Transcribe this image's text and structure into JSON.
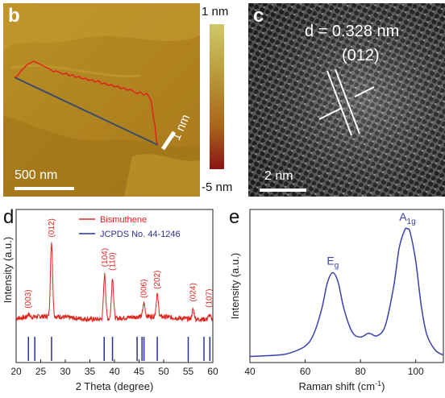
{
  "panel_b": {
    "letter": "b",
    "scale_bar_label": "500 nm",
    "step_label": "1 nm",
    "colorbar_max": "1 nm",
    "colorbar_min": "-5 nm",
    "colors": {
      "bg": "#b58a1e",
      "line": "#e0241d",
      "profile_path": "#3a4c6a"
    }
  },
  "panel_c": {
    "letter": "c",
    "d_spacing": "d = 0.328 nm",
    "plane": "(012)",
    "scale_bar_label": "2 nm"
  },
  "chart_data": [
    {
      "panel": "d",
      "type": "line",
      "xlabel": "2 Theta (degree)",
      "ylabel": "Intensity (a.u.)",
      "xlim": [
        20,
        60
      ],
      "xticks": [
        20,
        25,
        30,
        35,
        40,
        45,
        50,
        55,
        60
      ],
      "legend": [
        {
          "name": "Bismuthene",
          "color": "#e0241d",
          "style": "line"
        },
        {
          "name": "JCPDS No. 44-1246",
          "color": "#2b2f9a",
          "style": "line"
        }
      ],
      "peaks": [
        {
          "x": 22.5,
          "label": "(003)",
          "rel": 0.04
        },
        {
          "x": 27.2,
          "label": "(012)",
          "rel": 1.0
        },
        {
          "x": 38.0,
          "label": "(104)",
          "rel": 0.6
        },
        {
          "x": 39.6,
          "label": "(110)",
          "rel": 0.55
        },
        {
          "x": 46.0,
          "label": "(006)",
          "rel": 0.18
        },
        {
          "x": 48.7,
          "label": "(202)",
          "rel": 0.3
        },
        {
          "x": 56.0,
          "label": "(024)",
          "rel": 0.13
        },
        {
          "x": 59.3,
          "label": "(107)",
          "rel": 0.05
        }
      ],
      "reference_lines": [
        22.5,
        23.8,
        27.2,
        37.9,
        39.6,
        44.6,
        45.6,
        46.0,
        48.7,
        55.0,
        58.2,
        59.4
      ]
    },
    {
      "panel": "e",
      "type": "line",
      "xlabel": "Raman shift (cm",
      "xlabel_sup": "-1",
      "ylabel": "Intensity (a.u.)",
      "xlim": [
        40,
        110
      ],
      "xticks": [
        40,
        60,
        80,
        100
      ],
      "color": "#3b3fb0",
      "x": [
        40,
        50,
        55,
        60,
        63,
        66,
        68,
        70,
        72,
        74,
        77,
        80,
        83,
        86,
        89,
        92,
        94,
        96,
        97,
        98,
        100,
        102,
        104,
        107,
        110
      ],
      "y": [
        0.01,
        0.02,
        0.04,
        0.09,
        0.18,
        0.38,
        0.58,
        0.66,
        0.58,
        0.38,
        0.2,
        0.16,
        0.19,
        0.17,
        0.25,
        0.55,
        0.85,
        0.99,
        1.0,
        0.97,
        0.75,
        0.4,
        0.18,
        0.06,
        0.02
      ],
      "peak_labels": [
        {
          "x": 70,
          "text": "E",
          "sub": "g"
        },
        {
          "x": 97,
          "text": "A",
          "sub": "1g"
        }
      ]
    }
  ],
  "letters": {
    "d": "d",
    "e": "e"
  }
}
